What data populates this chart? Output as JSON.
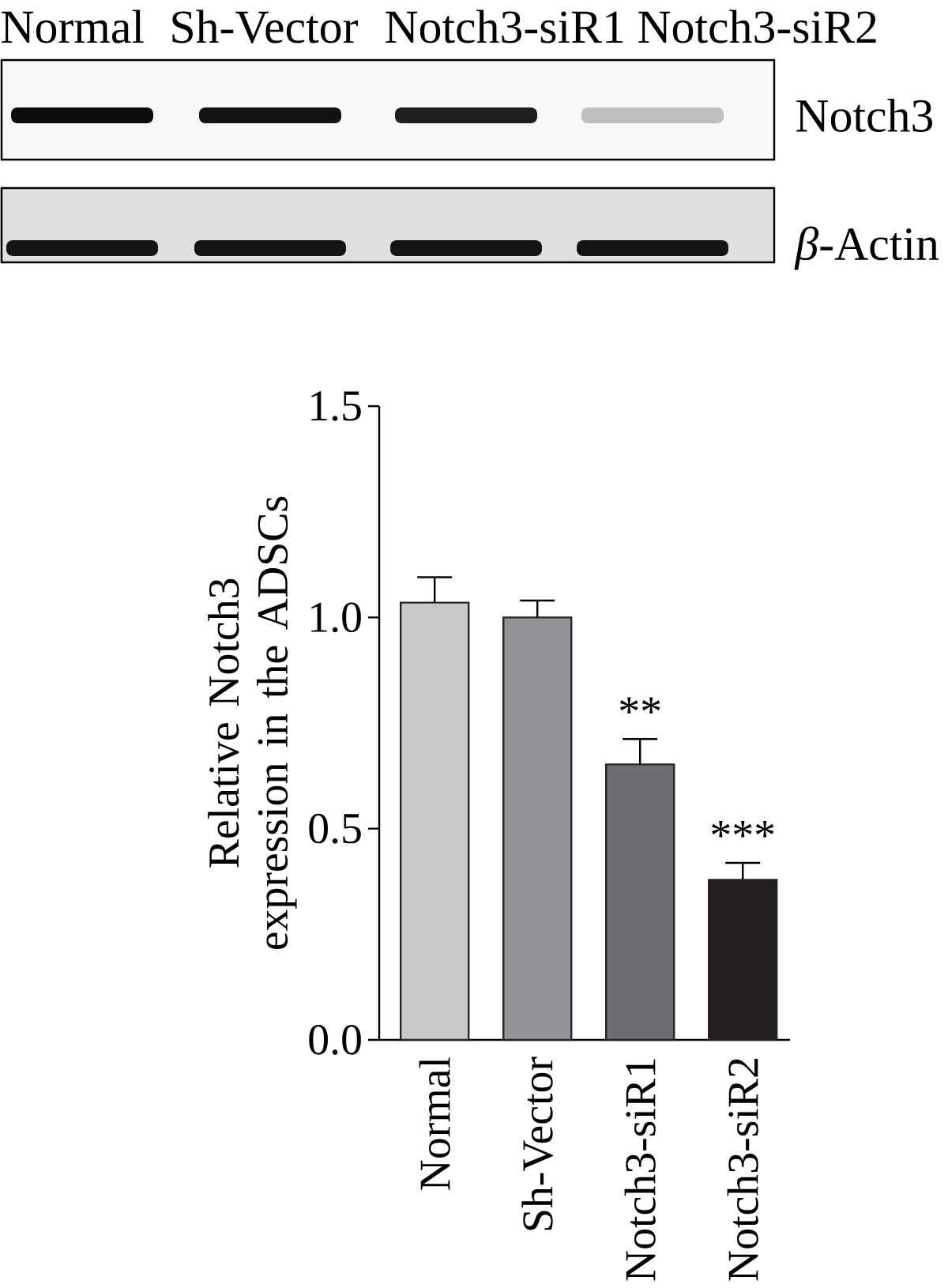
{
  "chart_data": {
    "type": "bar",
    "categories": [
      "Normal",
      "Sh-Vector",
      "Notch3-siR1",
      "Notch3-siR2"
    ],
    "values": [
      1.035,
      1.0,
      0.652,
      0.379
    ],
    "colors": [
      "#c8c9cb",
      "#949598",
      "#6c6d70",
      "#231f20"
    ],
    "errors": [
      [
        1.035,
        1.095
      ],
      [
        1.0,
        1.04
      ],
      [
        0.652,
        0.712
      ],
      [
        0.379,
        0.419
      ]
    ],
    "ylabel": "Relative Notch3 expression in the ADSCs",
    "ylim": [
      0,
      1.5
    ],
    "yticks": [
      {
        "value": 0,
        "label": "0.0"
      },
      0.5,
      {
        "value": 1,
        "label": "1.0"
      },
      1.5
    ],
    "annotations": [
      "Normal",
      "Sh-Vector",
      "Notch3-siR1",
      "Notch3-siR2",
      "Notch3",
      "*β*-Actin",
      "**",
      "***"
    ]
  }
}
